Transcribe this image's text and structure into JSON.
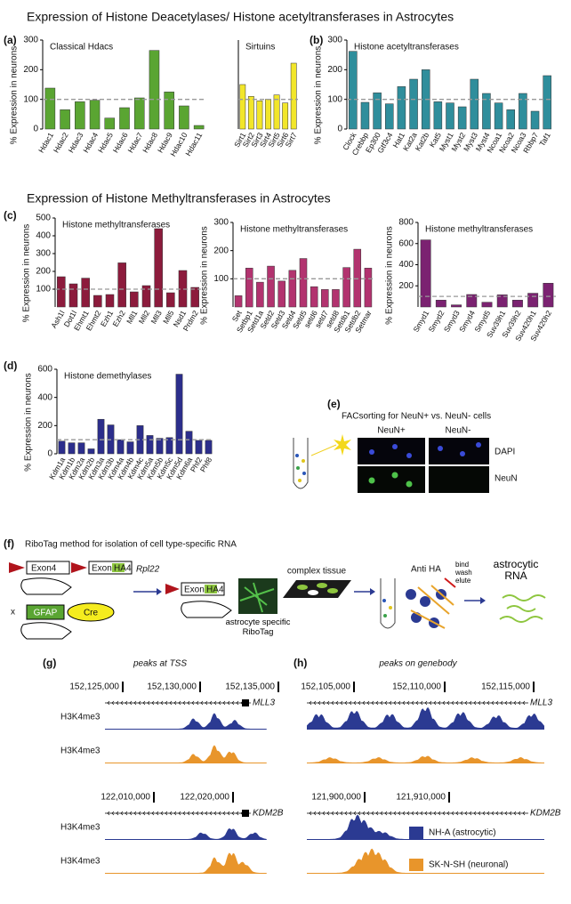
{
  "headings": [
    "Expression of Histone Deacetylases/ Histone acetyltransferases in Astrocytes",
    "Expression of Histone Methyltransferases in Astrocytes"
  ],
  "panel_labels": [
    "(a)",
    "(b)",
    "(c)",
    "(d)",
    "(e)",
    "(f)",
    "(g)",
    "(h)"
  ],
  "chart_data": [
    {
      "type": "bar",
      "title": "Classical Hdacs",
      "ylabel": "% Expression in neurons",
      "color": "#5aa532",
      "ylim": [
        0,
        300
      ],
      "yticks": [
        0,
        100,
        200,
        300
      ],
      "reference_line": 100,
      "categories": [
        "Hdac1",
        "Hdac2",
        "Hdac3",
        "Hdac4",
        "Hdac5",
        "Hdac6",
        "Hdac7",
        "Hdac8",
        "Hdac9",
        "Hdac10",
        "Hdac11"
      ],
      "values": [
        138,
        65,
        92,
        97,
        37,
        72,
        105,
        265,
        125,
        78,
        12
      ]
    },
    {
      "type": "bar",
      "title": "Sirtuins",
      "color": "#f2e62a",
      "ylim": [
        0,
        300
      ],
      "reference_line": 100,
      "categories": [
        "Sirt1",
        "Sirt2",
        "Sirt3",
        "Sirt4",
        "Sirt5",
        "Sirt6",
        "Sirt7"
      ],
      "values": [
        150,
        110,
        95,
        100,
        115,
        88,
        222
      ]
    },
    {
      "type": "bar",
      "title": "Histone acetyltransferases",
      "ylabel": "% Expression in neurons",
      "color": "#2f8e9c",
      "ylim": [
        0,
        300
      ],
      "yticks": [
        0,
        100,
        200,
        300
      ],
      "reference_line": 100,
      "categories": [
        "Clock",
        "Crebbp",
        "Ep300",
        "Gtf3c4",
        "Hat1",
        "Kat2a",
        "Kat2b",
        "Kat5",
        "Myst1",
        "Myst2",
        "Myst3",
        "Myst4",
        "Ncoa1",
        "Ncoa2",
        "Ncoa3",
        "Rbbp7",
        "Taf1"
      ],
      "values": [
        262,
        90,
        122,
        85,
        143,
        168,
        200,
        92,
        88,
        75,
        168,
        120,
        88,
        65,
        120,
        60,
        180
      ]
    },
    {
      "type": "bar",
      "title": "Histone methyltransferases",
      "ylabel": "% Expression in neurons",
      "color": "#8c1b3c",
      "ylim": [
        0,
        500
      ],
      "yticks": [
        100,
        200,
        300,
        400,
        500
      ],
      "reference_line": 100,
      "categories": [
        "Ash1l",
        "Dot1l",
        "Ehmt1",
        "Ehmt2",
        "Ezh1",
        "Ezh2",
        "Mll1",
        "Mll2",
        "Mll3",
        "Mll5",
        "Nsd1",
        "Prdm2"
      ],
      "values": [
        170,
        130,
        162,
        65,
        70,
        248,
        85,
        120,
        440,
        80,
        205,
        110
      ]
    },
    {
      "type": "bar",
      "title": "Histone methyltransferases",
      "ylabel": "% Expression in neurons",
      "color": "#b2336f",
      "ylim": [
        0,
        300
      ],
      "yticks": [
        100,
        200,
        300
      ],
      "reference_line": 100,
      "categories": [
        "Set",
        "Setbp1",
        "Setd1a",
        "Setd2",
        "Setd3",
        "Setd4",
        "Setd5",
        "setd6",
        "setd7",
        "setd8",
        "Setdb1",
        "Setdb2",
        "Setmar"
      ],
      "values": [
        40,
        138,
        88,
        145,
        92,
        130,
        172,
        72,
        62,
        62,
        140,
        205,
        138
      ]
    },
    {
      "type": "bar",
      "title": "Histone methyltransferases",
      "ylabel": "% Expression in neurons",
      "color": "#7b2271",
      "ylim": [
        0,
        800
      ],
      "yticks": [
        200,
        400,
        600,
        800
      ],
      "reference_line": 100,
      "categories": [
        "Smyd1",
        "Smyd2",
        "Smyd3",
        "Smyd4",
        "Smyd5",
        "Suv39h1",
        "Suv39h2",
        "Suv420h1",
        "Suv420h2"
      ],
      "values": [
        635,
        65,
        20,
        118,
        45,
        115,
        65,
        130,
        225
      ]
    },
    {
      "type": "bar",
      "title": "Histone demethylases",
      "ylabel": "% Expression in neurons",
      "color": "#2c2e8c",
      "ylim": [
        0,
        600
      ],
      "yticks": [
        0,
        200,
        400,
        600
      ],
      "reference_line": 100,
      "categories": [
        "Kdm1a",
        "Kdm1b",
        "Kdm2a",
        "Kdm2b",
        "Kdm3a",
        "Kdm3b",
        "Kdm4a",
        "Kdm4b",
        "Kdm4c",
        "Kdm5a",
        "Kdm5b",
        "Kdm5c",
        "Kdm5d",
        "Kdm6a",
        "Phf2",
        "Phf8"
      ],
      "values": [
        90,
        78,
        78,
        35,
        245,
        205,
        100,
        85,
        200,
        130,
        110,
        115,
        565,
        160,
        95,
        95
      ]
    }
  ],
  "facs": {
    "title": "FACsorting for NeuN+ vs. NeuN- cells",
    "columns": [
      "NeuN+",
      "NeuN-"
    ],
    "rows": [
      "DAPI",
      "NeuN"
    ]
  },
  "ribotag": {
    "title": "RiboTag method for isolation of cell type-specific RNA",
    "exon4": "Exon4",
    "exon": "Exon",
    "ha": "HA",
    "four": "4",
    "gene": "Rpl22",
    "cross": "x",
    "gfap": "GFAP",
    "cre": "Cre",
    "astro_label": "astrocyte specific RiboTag",
    "tissue": "complex tissue",
    "anti_ha": "Anti HA",
    "steps": "bind wash elute",
    "rna": "astrocytic RNA"
  },
  "genome": {
    "g": {
      "title": "peaks at TSS",
      "loci": [
        {
          "coords": [
            "152,125,000",
            "152,130,000",
            "152,135,000"
          ],
          "gene": "MLL3",
          "tracks": [
            "H3K4me3",
            "H3K4me3"
          ]
        },
        {
          "coords": [
            "122,010,000",
            "122,020,000"
          ],
          "gene": "KDM2B",
          "tracks": [
            "H3K4me3",
            "H3K4me3"
          ]
        }
      ]
    },
    "h": {
      "title": "peaks on genebody",
      "loci": [
        {
          "coords": [
            "152,105,000",
            "152,110,000",
            "152,115,000"
          ],
          "gene": "MLL3"
        },
        {
          "coords": [
            "121,900,000",
            "121,910,000"
          ],
          "gene": "KDM2B"
        }
      ]
    },
    "legend": [
      {
        "name": "NH-A (astrocytic)",
        "color": "#2b3a92"
      },
      {
        "name": "SK-N-SH (neuronal)",
        "color": "#e8952b"
      }
    ]
  }
}
